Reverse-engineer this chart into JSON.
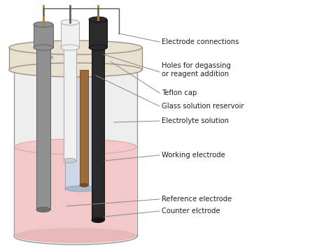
{
  "figure_width": 4.73,
  "figure_height": 3.52,
  "dpi": 100,
  "background_color": "#ffffff",
  "labels": {
    "electrode_connections": "Electrode connections",
    "holes_degassing": "Holes for degassing\nor reagent addition",
    "teflon_cap": "Teflon cap",
    "glass_reservoir": "Glass solution reservoir",
    "electrolyte": "Electrolyte solution",
    "working": "Working electrode",
    "reference": "Reference electrode",
    "counter": "Counter elctrode"
  },
  "colors": {
    "outer_cyl_face": "#eeeeee",
    "outer_cyl_edge": "#999999",
    "solution_fill": "#f2c8c8",
    "solution_top_edge": "#d8a8a8",
    "teflon_face": "#e8e0d0",
    "teflon_edge": "#a09080",
    "glass_tube_face": "#ccd8e8",
    "glass_tube_edge": "#88aabb",
    "e1_gray": "#909090",
    "e1_edge": "#606060",
    "e2_white": "#f0f0f0",
    "e2_edge": "#aaaaaa",
    "e3_black": "#2a2a2a",
    "e3_edge": "#111111",
    "wire_orange": "#c88000",
    "wire_mid": "#888888",
    "inner_rod": "#9B6B3A",
    "inner_rod_edge": "#6B4020",
    "ann_line": "#888888",
    "text_color": "#222222",
    "bracket": "#555555"
  },
  "font_size": 7.2
}
